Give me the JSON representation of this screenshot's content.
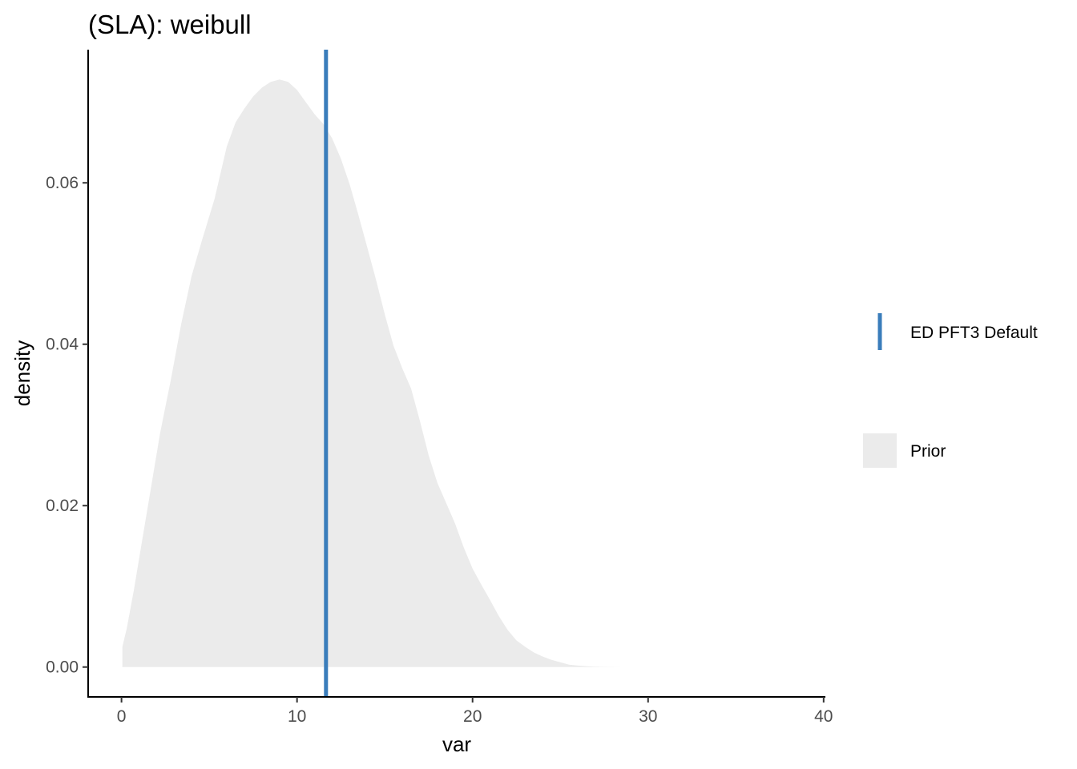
{
  "chart_data": {
    "type": "area",
    "title": "(SLA): weibull",
    "xlabel": "var",
    "ylabel": "density",
    "xlim": [
      -1.9,
      40.1
    ],
    "ylim": [
      -0.0037,
      0.0765
    ],
    "x_ticks": [
      "0",
      "10",
      "20",
      "30",
      "40"
    ],
    "x_tick_values": [
      0,
      10,
      20,
      30,
      40
    ],
    "y_ticks": [
      "0.00",
      "0.02",
      "0.04",
      "0.06"
    ],
    "y_tick_values": [
      0,
      0.02,
      0.04,
      0.06
    ],
    "grid": false,
    "legend_placement": "right",
    "colors": {
      "prior_fill": "#ebebeb",
      "default_line": "#3a7dbb",
      "axis": "#000000",
      "tick_text": "#4d4d4d"
    },
    "series": [
      {
        "name": "Prior",
        "kind": "density-area",
        "x": [
          0.05,
          0.3,
          0.7,
          1.2,
          1.7,
          2.2,
          2.8,
          3.4,
          4.0,
          4.6,
          5.3,
          6.0,
          6.5,
          7.0,
          7.5,
          8.0,
          8.5,
          9.0,
          9.5,
          10.0,
          10.5,
          11.0,
          11.5,
          12.0,
          12.5,
          13.0,
          13.5,
          14.0,
          14.5,
          15.0,
          15.5,
          16.0,
          16.5,
          17.0,
          17.5,
          18.0,
          18.5,
          19.0,
          19.5,
          20.0,
          20.5,
          21.0,
          21.5,
          22.0,
          22.5,
          23.0,
          23.5,
          24.0,
          24.5,
          25.0,
          25.5,
          26.0,
          26.5,
          27.0,
          27.5,
          28.0,
          28.5,
          29.0,
          29.5,
          30.0,
          30.5,
          31.0,
          31.5,
          32.0,
          33.0,
          34.0,
          34.7
        ],
        "y": [
          0.0025,
          0.0048,
          0.0095,
          0.016,
          0.0225,
          0.029,
          0.0355,
          0.0425,
          0.0485,
          0.053,
          0.058,
          0.0645,
          0.0675,
          0.0692,
          0.0707,
          0.0718,
          0.0725,
          0.0728,
          0.0725,
          0.0715,
          0.07,
          0.0685,
          0.0673,
          0.0655,
          0.063,
          0.0598,
          0.056,
          0.052,
          0.048,
          0.0437,
          0.0398,
          0.037,
          0.0345,
          0.0305,
          0.0262,
          0.0228,
          0.0203,
          0.0178,
          0.0148,
          0.0122,
          0.0102,
          0.0083,
          0.0063,
          0.0046,
          0.0033,
          0.0025,
          0.0018,
          0.0013,
          0.0009,
          0.0006,
          0.0003,
          0.00018,
          0.0001,
          5e-05,
          2e-05,
          1e-05,
          0.0,
          0.0,
          0.0,
          0.0,
          0.0,
          0.0,
          0.0,
          0.0,
          0.0,
          0.0,
          0.0
        ]
      },
      {
        "name": "ED PFT3 Default",
        "kind": "vline",
        "x": 11.65
      }
    ]
  }
}
